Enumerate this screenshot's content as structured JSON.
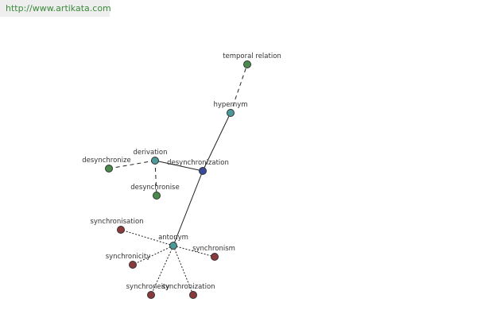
{
  "header": {
    "url": "http://www.artikata.com"
  },
  "nodes": [
    {
      "label": "desynchronization"
    },
    {
      "label": "hypernym"
    },
    {
      "label": "temporal relation"
    },
    {
      "label": "derivation"
    },
    {
      "label": "desynchronize"
    },
    {
      "label": "desynchronise"
    },
    {
      "label": "antonym"
    },
    {
      "label": "synchronisation"
    },
    {
      "label": "synchronicity"
    },
    {
      "label": "synchronism"
    },
    {
      "label": "synchroneity"
    },
    {
      "label": "synchronization"
    }
  ]
}
